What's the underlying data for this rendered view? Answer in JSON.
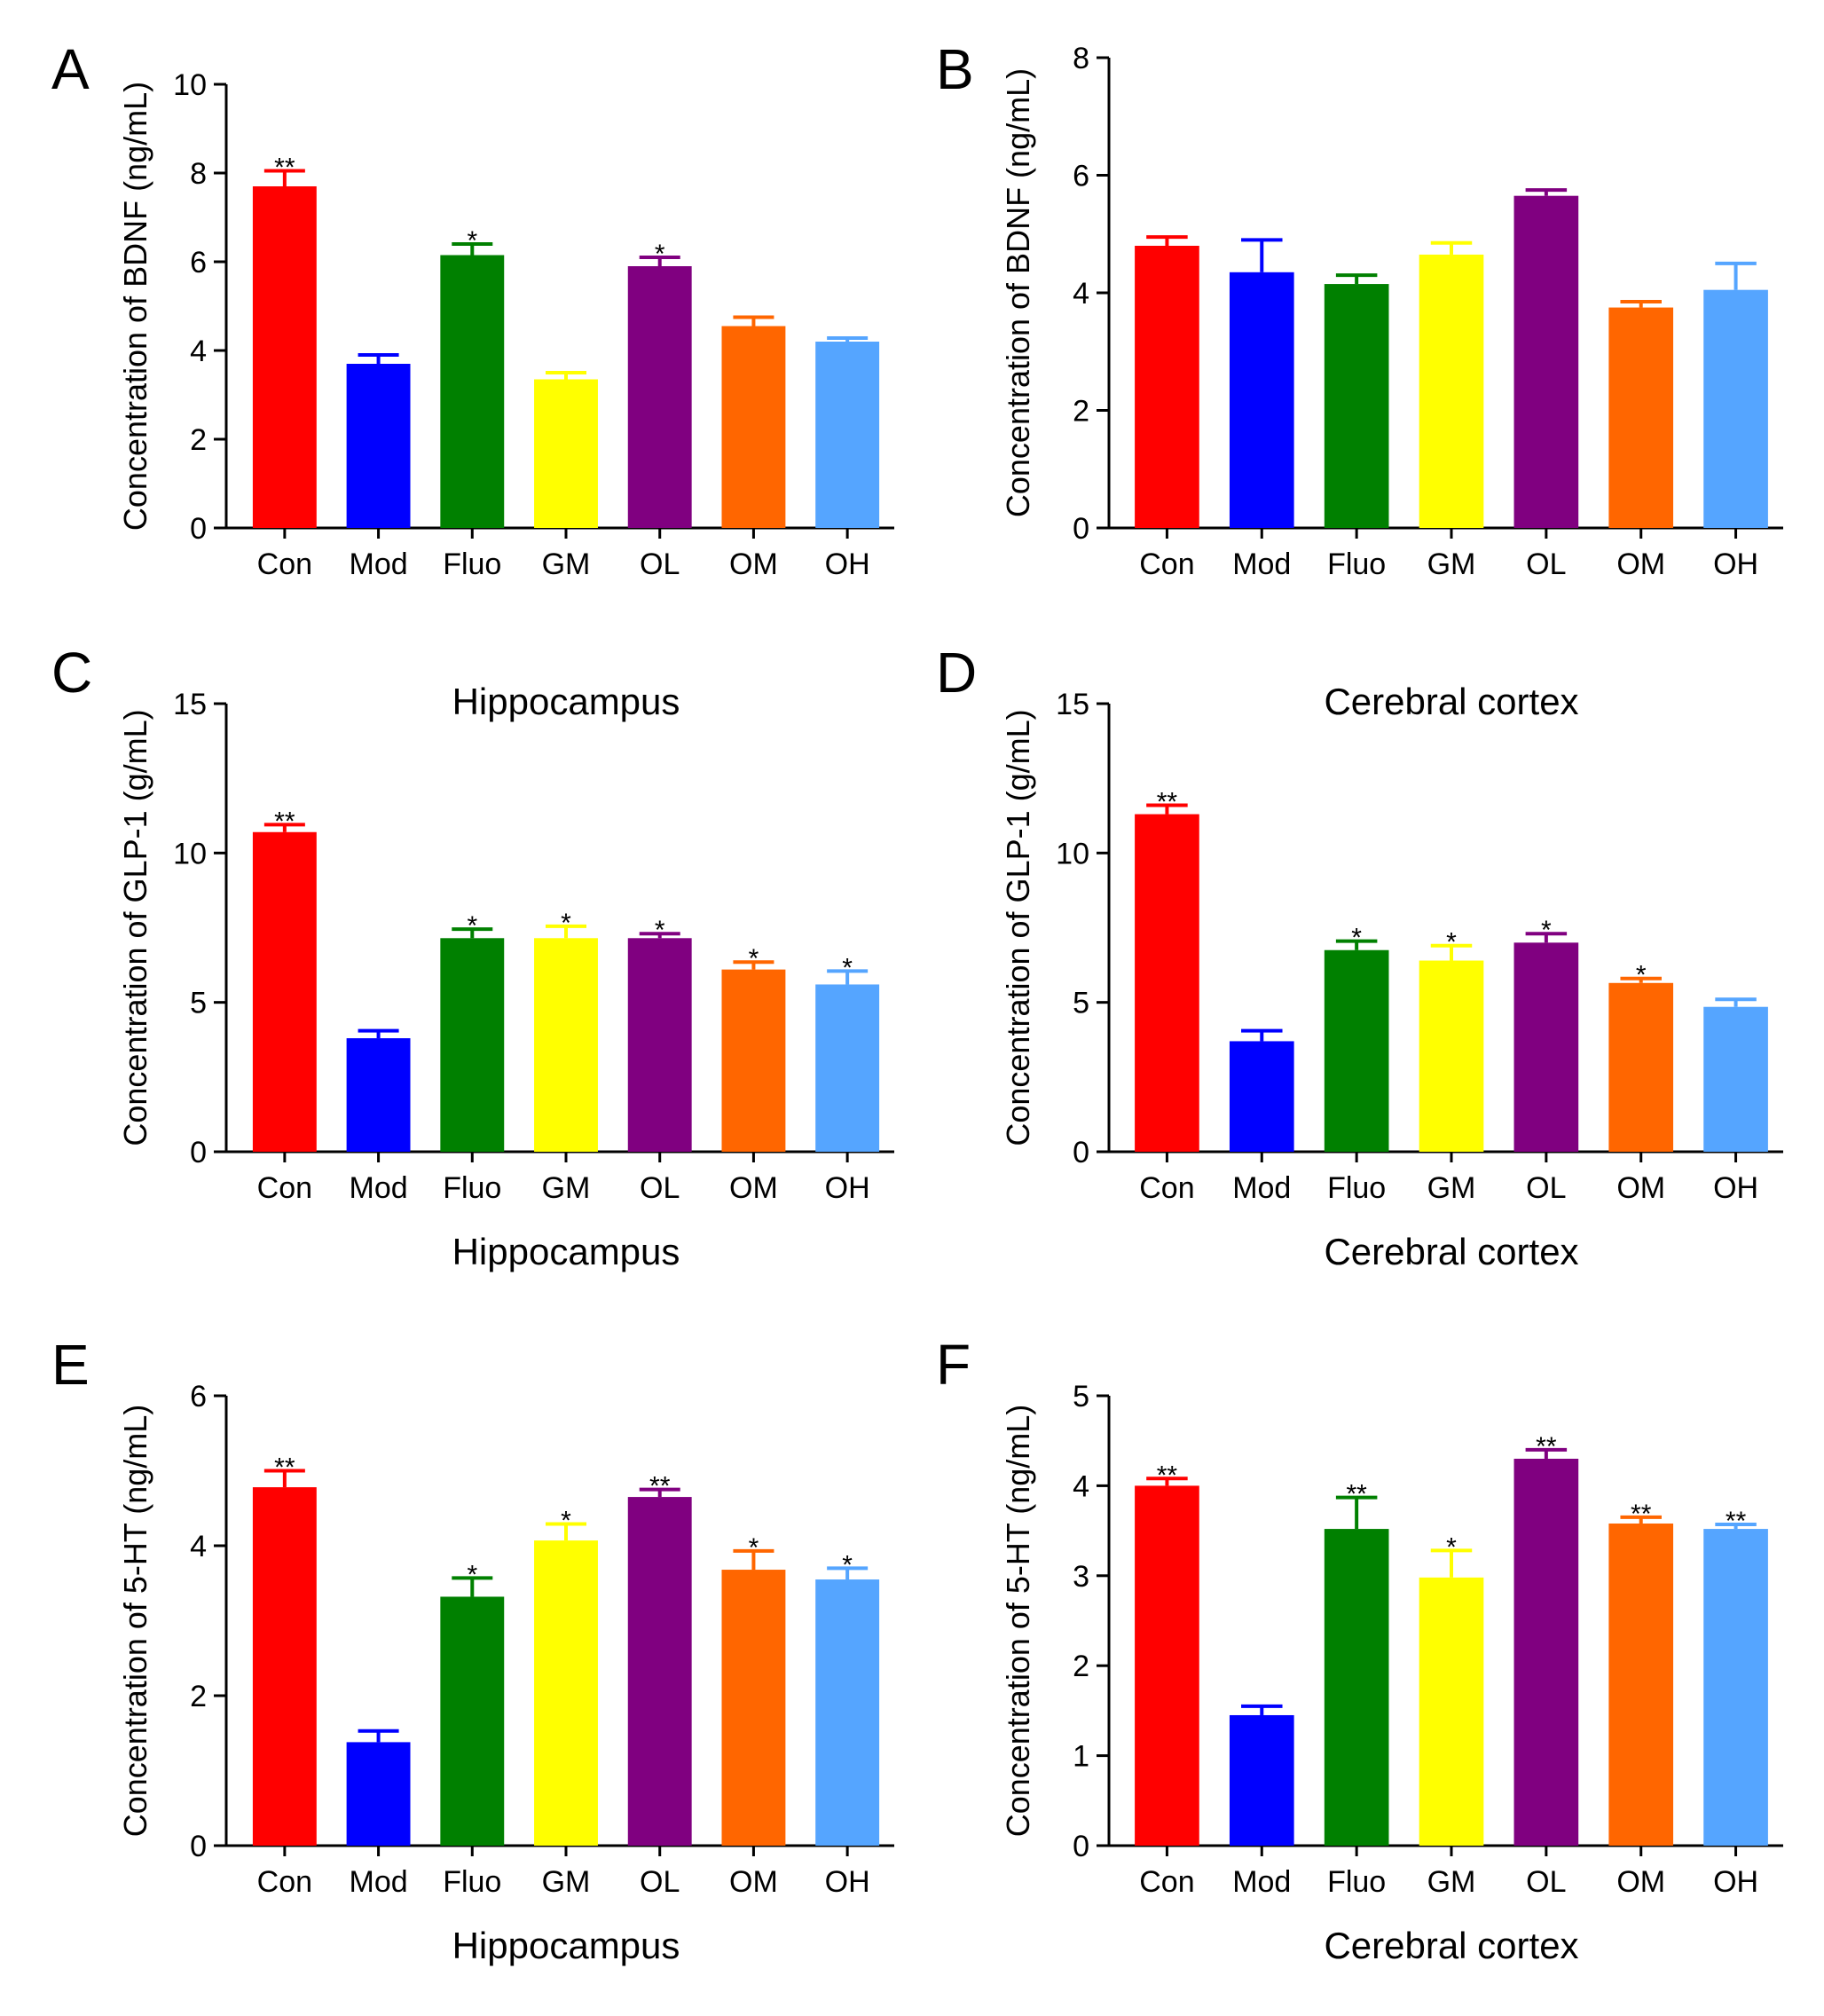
{
  "colors": {
    "Con": "#ff0000",
    "Mod": "#0000ff",
    "Fluo": "#008000",
    "GM": "#ffff00",
    "OL": "#800080",
    "OM": "#ff6600",
    "OH": "#55a5ff",
    "axis": "#000000"
  },
  "chart_data": [
    {
      "panel": "A",
      "type": "bar",
      "title": "",
      "xlabel": "",
      "ylabel": "Concentration of BDNF (ng/mL)",
      "ylim": [
        0,
        10
      ],
      "yticks": [
        0,
        2,
        4,
        6,
        8,
        10
      ],
      "categories": [
        "Con",
        "Mod",
        "Fluo",
        "GM",
        "OL",
        "OM",
        "OH"
      ],
      "values": [
        7.7,
        3.7,
        6.15,
        3.35,
        5.9,
        4.55,
        4.2
      ],
      "errors": [
        0.35,
        0.2,
        0.25,
        0.15,
        0.2,
        0.2,
        0.08
      ],
      "significance": [
        "**",
        "",
        "*",
        "",
        "*",
        "",
        ""
      ]
    },
    {
      "panel": "B",
      "type": "bar",
      "title": "",
      "xlabel": "",
      "ylabel": "Concentration of BDNF (ng/mL)",
      "ylim": [
        0,
        8
      ],
      "yticks": [
        0,
        2,
        4,
        6,
        8
      ],
      "categories": [
        "Con",
        "Mod",
        "Fluo",
        "GM",
        "OL",
        "OM",
        "OH"
      ],
      "values": [
        4.8,
        4.35,
        4.15,
        4.65,
        5.65,
        3.75,
        4.05
      ],
      "errors": [
        0.15,
        0.55,
        0.15,
        0.2,
        0.1,
        0.1,
        0.45
      ],
      "significance": [
        "",
        "",
        "",
        "",
        "",
        "",
        ""
      ]
    },
    {
      "panel": "C",
      "type": "bar",
      "title": "Hippocampus",
      "xlabel": "Hippocampus",
      "ylabel": "Concentration of GLP-1 (g/mL)",
      "ylim": [
        0,
        15
      ],
      "yticks": [
        0,
        5,
        10,
        15
      ],
      "categories": [
        "Con",
        "Mod",
        "Fluo",
        "GM",
        "OL",
        "OM",
        "OH"
      ],
      "values": [
        10.7,
        3.8,
        7.15,
        7.15,
        7.15,
        6.1,
        5.6
      ],
      "errors": [
        0.25,
        0.25,
        0.3,
        0.4,
        0.15,
        0.25,
        0.45
      ],
      "significance": [
        "**",
        "",
        "*",
        "*",
        "*",
        "*",
        "*"
      ]
    },
    {
      "panel": "D",
      "type": "bar",
      "title": "Cerebral cortex",
      "xlabel": "Cerebral cortex",
      "ylabel": "Concentration of GLP-1 (g/mL)",
      "ylim": [
        0,
        15
      ],
      "yticks": [
        0,
        5,
        10,
        15
      ],
      "categories": [
        "Con",
        "Mod",
        "Fluo",
        "GM",
        "OL",
        "OM",
        "OH"
      ],
      "values": [
        11.3,
        3.7,
        6.75,
        6.4,
        7.0,
        5.65,
        4.85
      ],
      "errors": [
        0.3,
        0.35,
        0.3,
        0.5,
        0.3,
        0.15,
        0.25
      ],
      "significance": [
        "**",
        "",
        "*",
        "*",
        "*",
        "*",
        ""
      ]
    },
    {
      "panel": "E",
      "type": "bar",
      "title": "",
      "xlabel": "Hippocampus",
      "ylabel": "Concentration of 5-HT (ng/mL)",
      "ylim": [
        0,
        6
      ],
      "yticks": [
        0,
        2,
        4,
        6
      ],
      "categories": [
        "Con",
        "Mod",
        "Fluo",
        "GM",
        "OL",
        "OM",
        "OH"
      ],
      "values": [
        4.78,
        1.38,
        3.32,
        4.07,
        4.65,
        3.68,
        3.55
      ],
      "errors": [
        0.22,
        0.15,
        0.25,
        0.22,
        0.1,
        0.25,
        0.15
      ],
      "significance": [
        "**",
        "",
        "*",
        "*",
        "**",
        "*",
        "*"
      ]
    },
    {
      "panel": "F",
      "type": "bar",
      "title": "",
      "xlabel": "Cerebral cortex",
      "ylabel": "Concentration of 5-HT (ng/mL)",
      "ylim": [
        0,
        5
      ],
      "yticks": [
        0,
        1,
        2,
        3,
        4,
        5
      ],
      "categories": [
        "Con",
        "Mod",
        "Fluo",
        "GM",
        "OL",
        "OM",
        "OH"
      ],
      "values": [
        4.0,
        1.45,
        3.52,
        2.98,
        4.3,
        3.58,
        3.52
      ],
      "errors": [
        0.08,
        0.1,
        0.35,
        0.3,
        0.1,
        0.07,
        0.05
      ],
      "significance": [
        "**",
        "",
        "**",
        "*",
        "**",
        "**",
        "**"
      ]
    }
  ]
}
